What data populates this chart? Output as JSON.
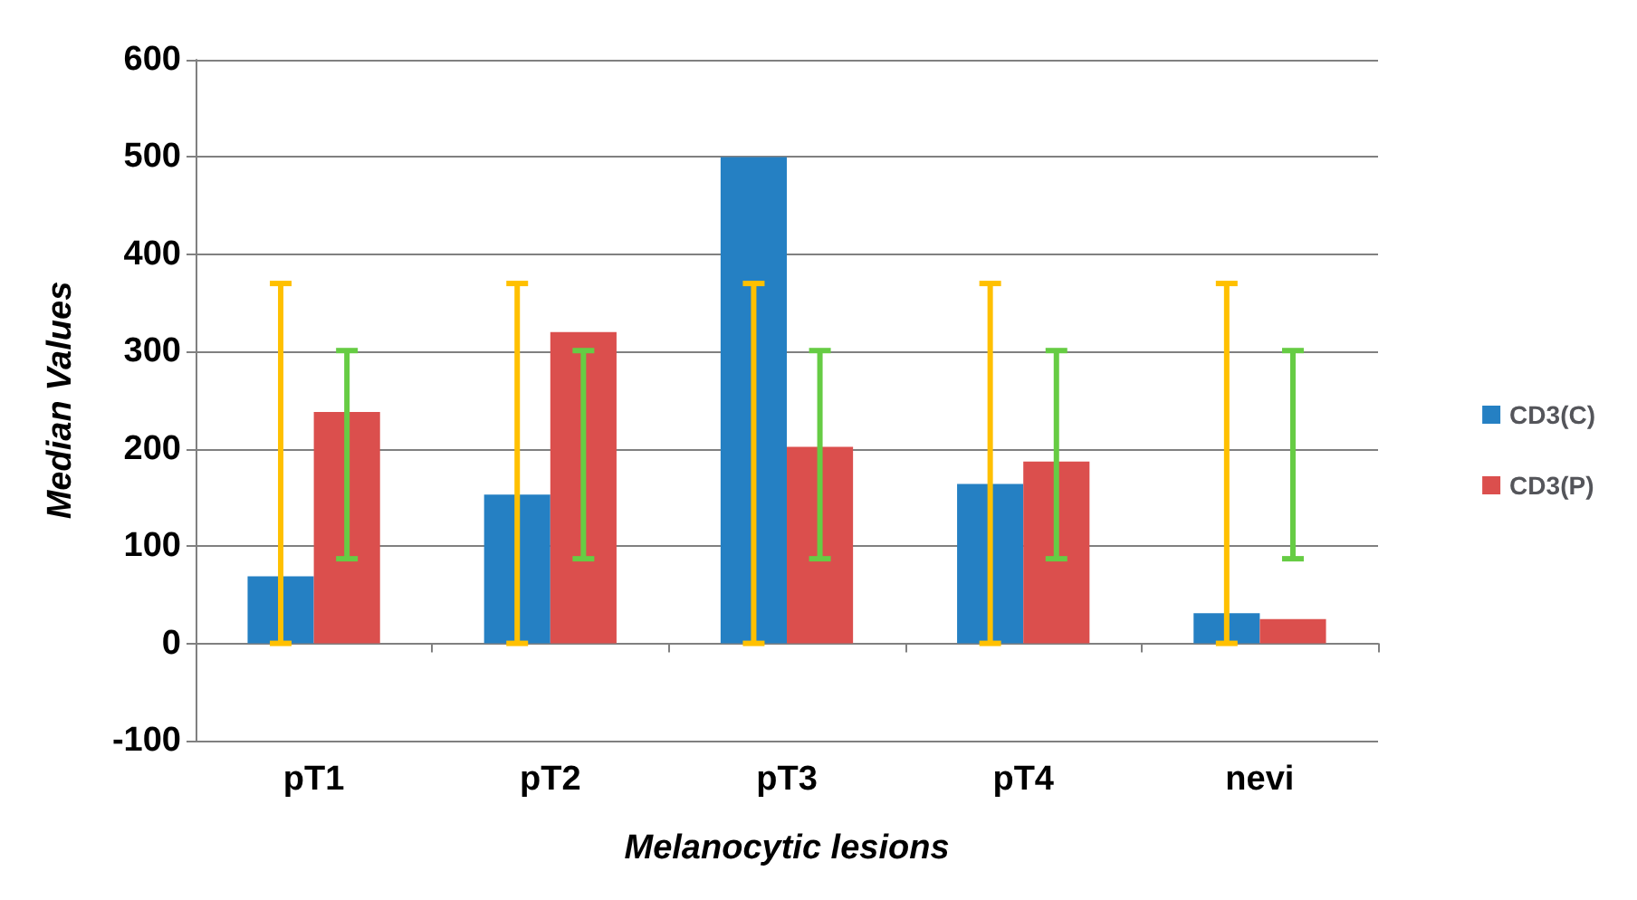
{
  "chart_data": {
    "type": "bar",
    "xlabel": "Melanocytic lesions",
    "ylabel": "Median Values",
    "categories": [
      "pT1",
      "pT2",
      "pT3",
      "pT4",
      "nevi"
    ],
    "series": [
      {
        "name": "CD3(C)",
        "color": "#2580c3",
        "values": [
          69,
          153,
          500,
          164,
          31
        ],
        "errors": [
          [
            0,
            370
          ],
          [
            0,
            370
          ],
          [
            0,
            370
          ],
          [
            0,
            370
          ],
          [
            0,
            370
          ]
        ]
      },
      {
        "name": "CD3(P)",
        "color": "#db4f4d",
        "values": [
          238,
          320,
          202,
          187,
          25
        ],
        "errors": [
          [
            87,
            301
          ],
          [
            87,
            301
          ],
          [
            87,
            301
          ],
          [
            87,
            301
          ],
          [
            87,
            301
          ]
        ]
      }
    ],
    "ylim": [
      -100,
      600
    ],
    "yticks": [
      -100,
      0,
      100,
      200,
      300,
      400,
      500,
      600
    ],
    "grid": "y",
    "legend": "right"
  }
}
